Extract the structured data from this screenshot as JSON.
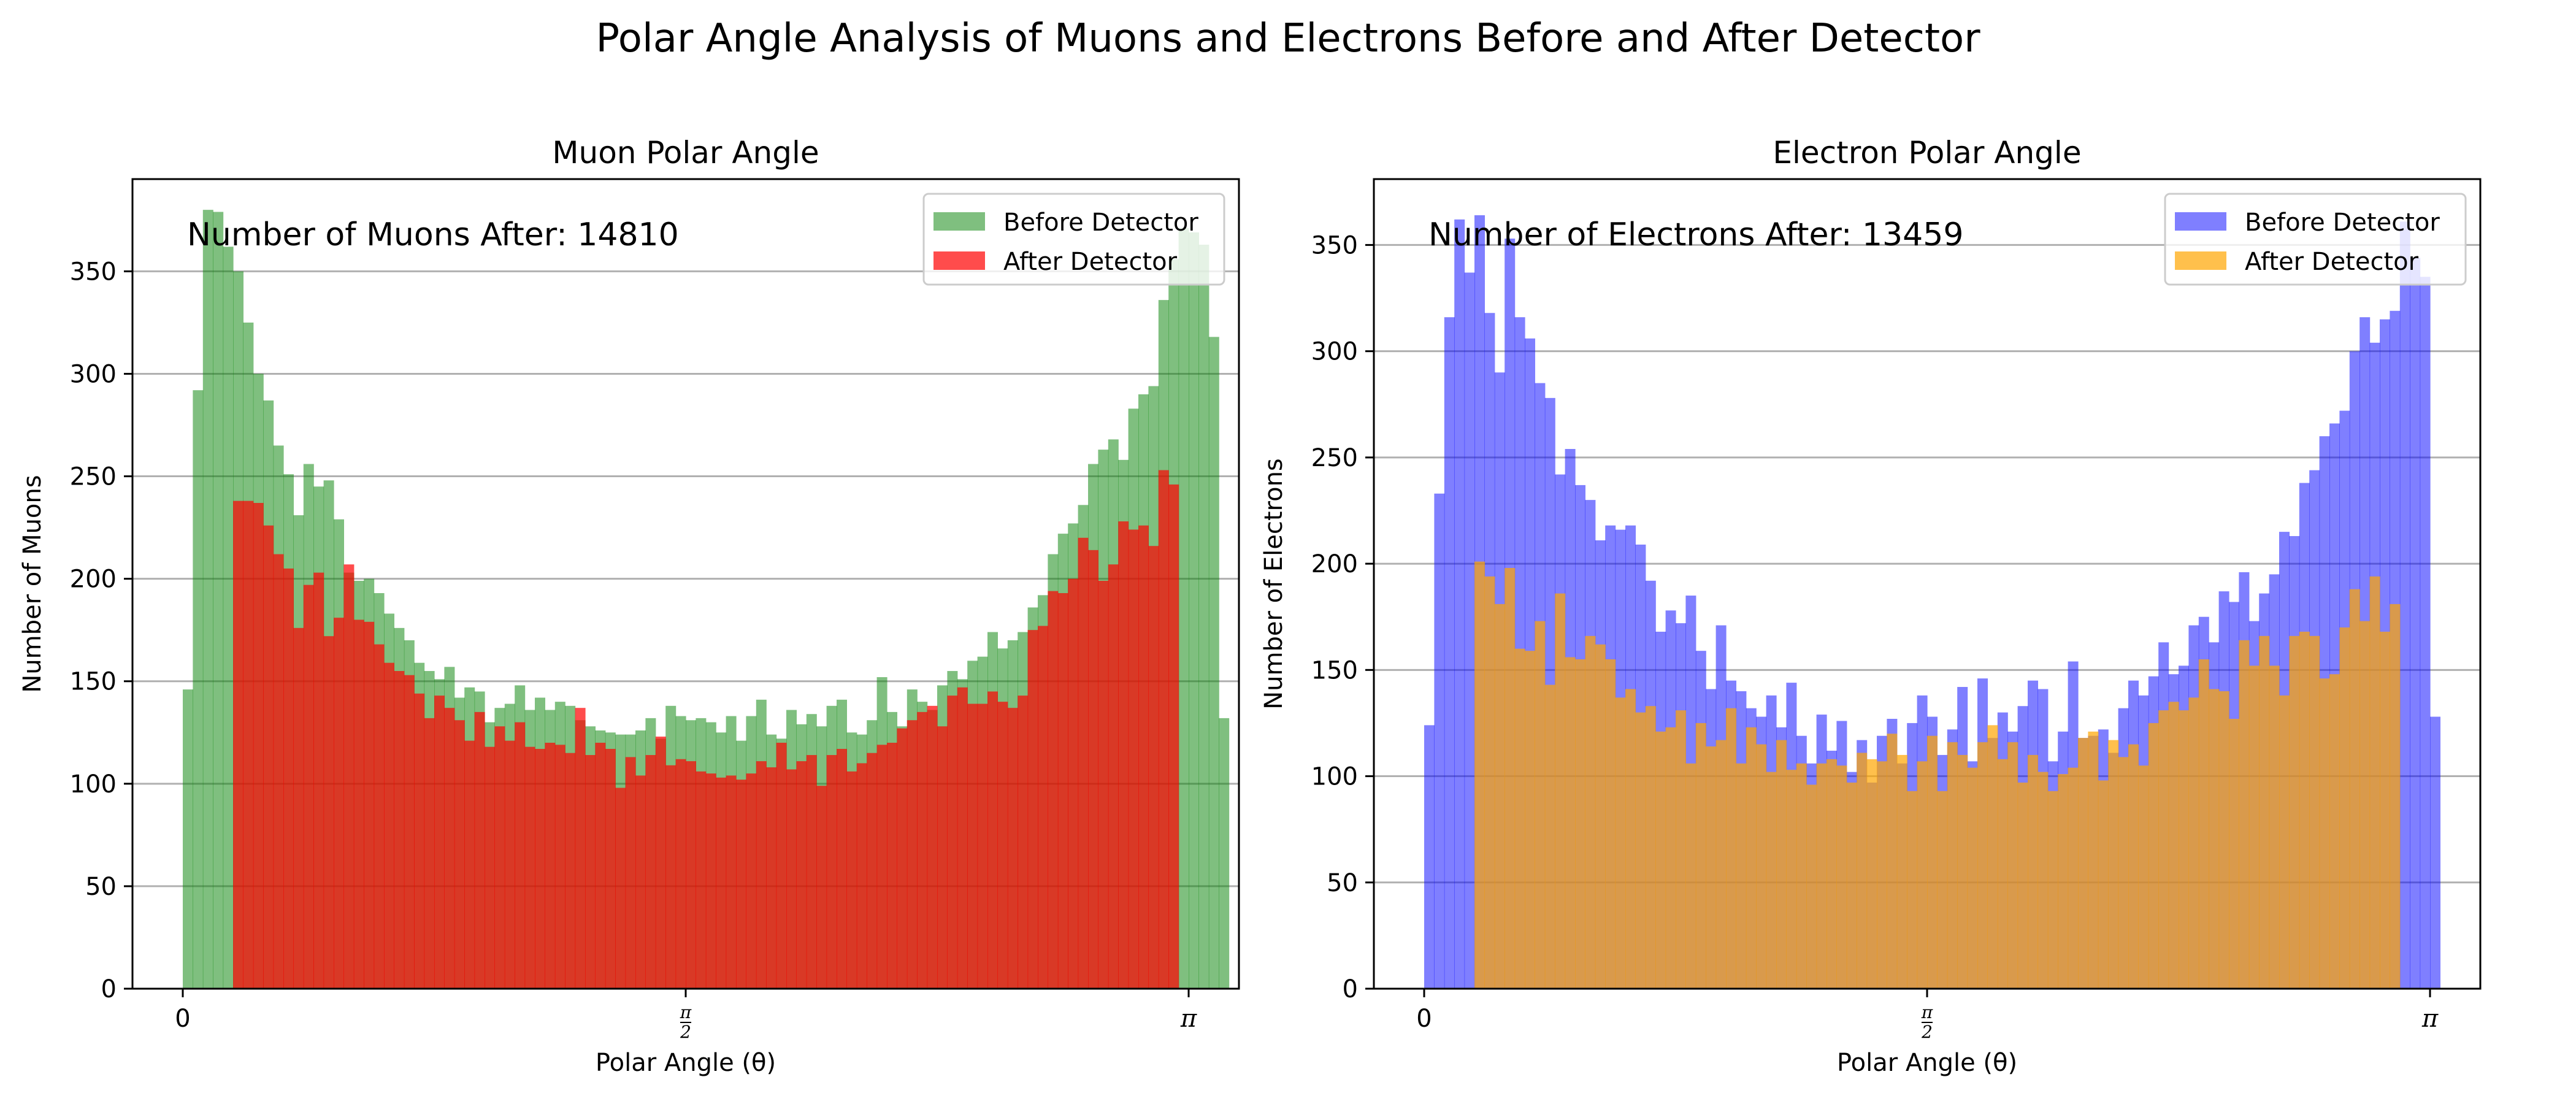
{
  "title": "Polar Angle Analysis of Muons and Electrons Before and After Detector",
  "chart_data": [
    {
      "type": "bar",
      "title": "Muon Polar Angle",
      "xlabel": "Polar Angle (θ)",
      "ylabel": "Number of Muons",
      "xlim": [
        -0.1,
        2.1
      ],
      "ylim": [
        0,
        395
      ],
      "x_units": "multiples of π/2",
      "xticks": [
        0,
        1,
        2
      ],
      "xtick_labels": [
        "0",
        "π/2",
        "π"
      ],
      "yticks": [
        0,
        50,
        100,
        150,
        200,
        250,
        300,
        350
      ],
      "ytick_labels": [
        "0",
        "50",
        "100",
        "150",
        "200",
        "250",
        "300",
        "350"
      ],
      "grid": "y",
      "legend": "top-right",
      "annotation": "Number of Muons After: 14810",
      "bin_start": 0,
      "bin_width": 0.02,
      "series": [
        {
          "name": "Before Detector",
          "color": "#008000",
          "opacity": 0.5,
          "values": [
            146,
            292,
            380,
            379,
            362,
            350,
            325,
            300,
            287,
            265,
            251,
            231,
            256,
            245,
            248,
            229,
            203,
            199,
            200,
            193,
            183,
            176,
            170,
            159,
            155,
            151,
            157,
            142,
            147,
            145,
            130,
            137,
            139,
            148,
            136,
            142,
            136,
            140,
            138,
            131,
            128,
            126,
            125,
            124,
            124,
            126,
            132,
            122,
            138,
            133,
            131,
            132,
            130,
            125,
            133,
            121,
            133,
            141,
            124,
            122,
            136,
            129,
            134,
            128,
            138,
            141,
            125,
            124,
            131,
            152,
            135,
            128,
            146,
            140,
            136,
            148,
            155,
            151,
            160,
            162,
            174,
            166,
            170,
            174,
            186,
            192,
            212,
            222,
            227,
            236,
            256,
            263,
            268,
            258,
            283,
            290,
            294,
            336,
            356,
            371,
            369,
            363,
            318,
            132
          ]
        },
        {
          "name": "After Detector",
          "color": "#ff0000",
          "opacity": 0.7,
          "values": [
            0,
            0,
            0,
            0,
            0,
            238,
            238,
            237,
            226,
            212,
            205,
            176,
            197,
            203,
            172,
            181,
            207,
            180,
            179,
            168,
            159,
            155,
            153,
            144,
            132,
            143,
            137,
            131,
            121,
            135,
            118,
            128,
            121,
            130,
            118,
            117,
            120,
            119,
            115,
            137,
            114,
            120,
            117,
            98,
            113,
            104,
            114,
            123,
            109,
            112,
            111,
            106,
            105,
            103,
            104,
            102,
            105,
            111,
            108,
            120,
            107,
            111,
            114,
            99,
            114,
            117,
            106,
            110,
            115,
            119,
            120,
            127,
            131,
            135,
            138,
            128,
            143,
            147,
            139,
            139,
            145,
            140,
            137,
            143,
            175,
            177,
            194,
            193,
            200,
            220,
            214,
            199,
            207,
            228,
            224,
            226,
            216,
            253,
            246,
            0,
            0,
            0,
            0,
            0
          ]
        }
      ]
    },
    {
      "type": "bar",
      "title": "Electron Polar Angle",
      "xlabel": "Polar Angle (θ)",
      "ylabel": "Number of Electrons",
      "xlim": [
        -0.1,
        2.1
      ],
      "ylim": [
        0,
        381
      ],
      "x_units": "multiples of π/2",
      "xticks": [
        0,
        1,
        2
      ],
      "xtick_labels": [
        "0",
        "π/2",
        "π"
      ],
      "yticks": [
        0,
        50,
        100,
        150,
        200,
        250,
        300,
        350
      ],
      "ytick_labels": [
        "0",
        "50",
        "100",
        "150",
        "200",
        "250",
        "300",
        "350"
      ],
      "grid": "y",
      "legend": "top-right",
      "annotation": "Number of Electrons After: 13459",
      "bin_start": 0,
      "bin_width": 0.02,
      "series": [
        {
          "name": "Before Detector",
          "color": "#0000ff",
          "opacity": 0.5,
          "values": [
            124,
            233,
            316,
            362,
            337,
            364,
            318,
            290,
            353,
            316,
            306,
            285,
            278,
            242,
            254,
            237,
            230,
            211,
            218,
            216,
            218,
            209,
            192,
            168,
            178,
            172,
            185,
            159,
            141,
            171,
            145,
            140,
            132,
            128,
            138,
            123,
            144,
            119,
            106,
            129,
            112,
            126,
            102,
            117,
            97,
            119,
            127,
            106,
            125,
            138,
            128,
            110,
            122,
            142,
            107,
            146,
            118,
            130,
            121,
            133,
            145,
            141,
            107,
            121,
            154,
            118,
            119,
            122,
            111,
            132,
            145,
            138,
            147,
            163,
            148,
            152,
            171,
            175,
            163,
            187,
            182,
            196,
            173,
            186,
            195,
            215,
            213,
            238,
            244,
            260,
            266,
            272,
            300,
            316,
            304,
            315,
            319,
            361,
            344,
            335,
            128
          ]
        },
        {
          "name": "After Detector",
          "color": "#ffa500",
          "opacity": 0.7,
          "values": [
            0,
            0,
            0,
            0,
            0,
            201,
            194,
            181,
            198,
            160,
            159,
            173,
            143,
            186,
            156,
            155,
            166,
            162,
            155,
            137,
            141,
            130,
            133,
            121,
            123,
            131,
            106,
            125,
            114,
            117,
            132,
            106,
            123,
            115,
            102,
            117,
            103,
            106,
            96,
            106,
            108,
            105,
            97,
            111,
            108,
            107,
            120,
            110,
            93,
            107,
            119,
            93,
            116,
            110,
            104,
            116,
            124,
            108,
            116,
            97,
            110,
            102,
            93,
            101,
            104,
            118,
            121,
            98,
            117,
            109,
            115,
            105,
            125,
            131,
            135,
            131,
            137,
            155,
            141,
            140,
            127,
            164,
            152,
            166,
            152,
            138,
            166,
            168,
            166,
            146,
            148,
            170,
            188,
            173,
            194,
            168,
            181,
            0,
            0,
            0,
            0
          ]
        }
      ]
    }
  ]
}
